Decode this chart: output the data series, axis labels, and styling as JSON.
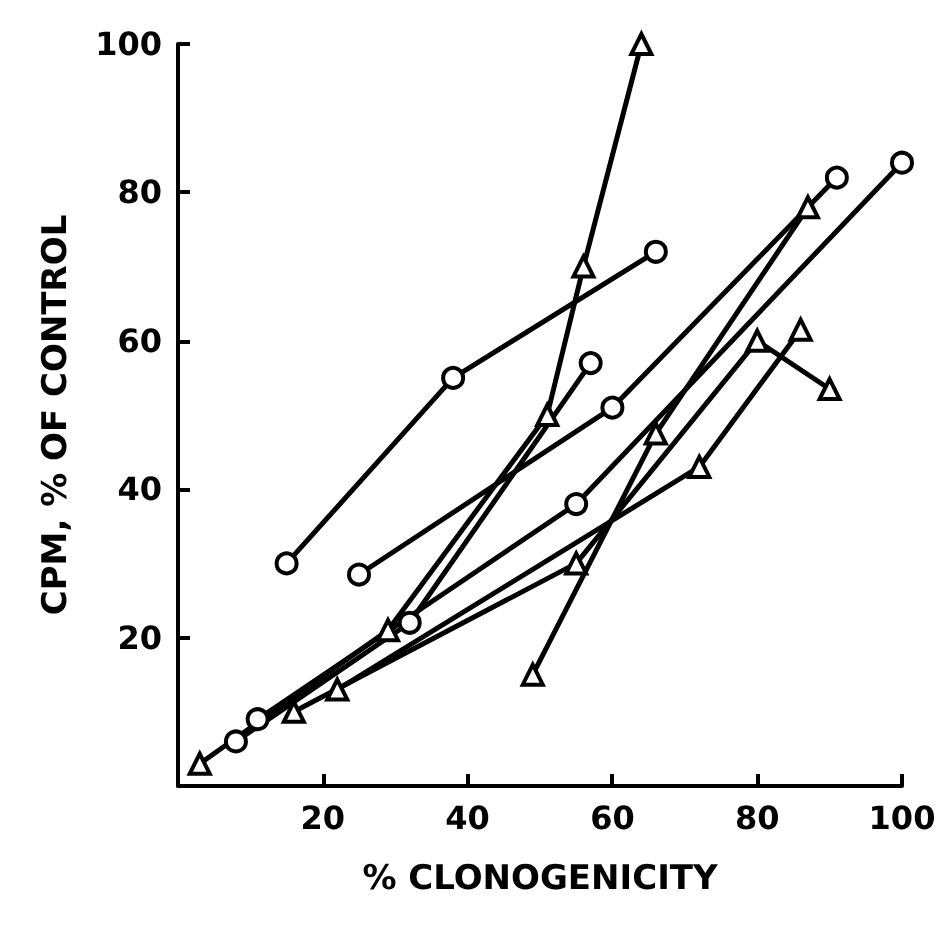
{
  "chart_data": {
    "type": "line",
    "xlabel": "% CLONOGENICITY",
    "ylabel": "CPM, % OF CONTROL",
    "xlim": [
      0,
      100
    ],
    "ylim": [
      0,
      100
    ],
    "xticks": [
      20,
      40,
      60,
      80,
      100
    ],
    "yticks": [
      20,
      40,
      60,
      80,
      100
    ],
    "line_style": "solid",
    "series": [
      {
        "color": "#000000",
        "marker": "circle",
        "x": [
          15,
          38,
          66
        ],
        "values": [
          30,
          55,
          72
        ]
      },
      {
        "color": "#000000",
        "marker": "circle",
        "x": [
          25,
          60,
          91
        ],
        "values": [
          28.5,
          51,
          82
        ]
      },
      {
        "color": "#000000",
        "marker": "circle",
        "x": [
          11,
          55,
          100
        ],
        "values": [
          9,
          38,
          84
        ]
      },
      {
        "color": "#000000",
        "marker": "triangle",
        "x": [
          3,
          29,
          51,
          56,
          64
        ],
        "values": [
          3,
          21,
          50,
          70,
          100
        ]
      },
      {
        "color": "#000000",
        "marker": "circle",
        "x": [
          8,
          32,
          57
        ],
        "values": [
          6,
          22,
          57
        ]
      },
      {
        "color": "#000000",
        "marker": "triangle",
        "x": [
          16,
          55,
          80,
          90
        ],
        "values": [
          10,
          30,
          60,
          53.5
        ]
      },
      {
        "color": "#000000",
        "marker": "triangle",
        "x": [
          49,
          66,
          87
        ],
        "values": [
          15,
          47.5,
          78
        ]
      },
      {
        "color": "#000000",
        "marker": "triangle",
        "x": [
          22,
          72,
          86
        ],
        "values": [
          13,
          43,
          61.5
        ]
      }
    ]
  }
}
